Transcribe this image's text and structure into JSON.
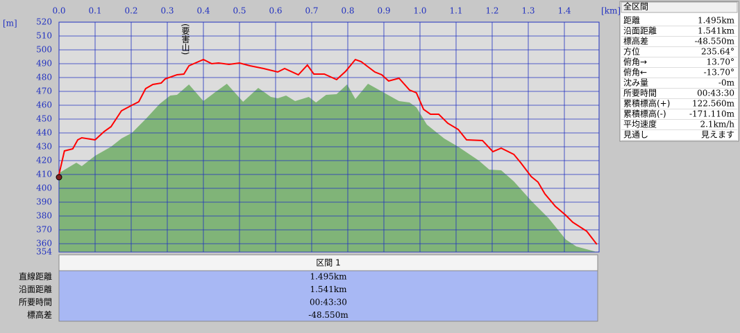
{
  "chart_data": {
    "type": "line",
    "xlim": [
      0,
      1.5
    ],
    "ylim": [
      354,
      520
    ],
    "xticks": [
      {
        "value": 0,
        "label": "0.0"
      },
      0.1,
      0.2,
      0.3,
      0.4,
      0.5,
      0.6,
      0.7,
      0.8,
      0.9,
      {
        "value": 1,
        "label": "1.0"
      },
      1.1,
      1.2,
      1.3,
      1.4
    ],
    "yticks": [
      354,
      360,
      370,
      380,
      390,
      400,
      410,
      420,
      430,
      440,
      450,
      460,
      470,
      480,
      490,
      500,
      510,
      520
    ],
    "x_unit": "[km]",
    "y_unit": "[m]",
    "grid": true,
    "annotations": [
      {
        "text": "(要害山)",
        "x": 0.35
      }
    ],
    "series": [
      {
        "area": true,
        "color": "#80b478",
        "x": [
          0,
          0.048,
          0.063,
          0.1,
          0.144,
          0.173,
          0.202,
          0.24,
          0.279,
          0.308,
          0.327,
          0.36,
          0.4,
          0.433,
          0.465,
          0.51,
          0.552,
          0.587,
          0.606,
          0.629,
          0.654,
          0.692,
          0.712,
          0.74,
          0.769,
          0.798,
          0.821,
          0.856,
          0.904,
          0.942,
          0.971,
          0.99,
          1.019,
          1.067,
          1.106,
          1.163,
          1.192,
          1.225,
          1.26,
          1.308,
          1.356,
          1.404,
          1.433,
          1.49
        ],
        "values": [
          411,
          418.5,
          416,
          423.5,
          430,
          436,
          440,
          450,
          461,
          467,
          467.5,
          475,
          463,
          469.5,
          475.5,
          462.5,
          472.5,
          466,
          465,
          467,
          463,
          466,
          462,
          467.5,
          468,
          475,
          464.5,
          475.5,
          468.5,
          463,
          462,
          458.5,
          446,
          436,
          430,
          420,
          413.5,
          413,
          405,
          391,
          378.5,
          363,
          358,
          354
        ]
      },
      {
        "area": false,
        "color": "#ff0000",
        "x": [
          0,
          0.015,
          0.038,
          0.052,
          0.063,
          0.1,
          0.125,
          0.144,
          0.173,
          0.202,
          0.221,
          0.24,
          0.26,
          0.283,
          0.294,
          0.327,
          0.346,
          0.36,
          0.4,
          0.423,
          0.442,
          0.471,
          0.5,
          0.529,
          0.567,
          0.606,
          0.625,
          0.663,
          0.688,
          0.706,
          0.735,
          0.769,
          0.794,
          0.821,
          0.837,
          0.875,
          0.894,
          0.913,
          0.942,
          0.971,
          0.99,
          1.01,
          1.029,
          1.052,
          1.077,
          1.106,
          1.129,
          1.173,
          1.202,
          1.225,
          1.26,
          1.279,
          1.308,
          1.327,
          1.346,
          1.375,
          1.404,
          1.423,
          1.462,
          1.49
        ],
        "values": [
          410,
          427,
          428.5,
          435,
          436.5,
          435,
          441,
          444.5,
          456,
          460,
          462.5,
          472,
          475,
          476,
          479,
          482,
          482.5,
          488.5,
          493,
          490,
          490.5,
          489.5,
          490.5,
          488.5,
          486.5,
          484,
          486.5,
          482,
          489,
          482.5,
          482.5,
          478.5,
          484.5,
          493,
          491.5,
          484,
          482,
          477.5,
          479.5,
          471,
          469,
          457,
          453.5,
          453.5,
          447,
          442.5,
          435,
          434.5,
          426.5,
          429,
          424.5,
          418.5,
          408.5,
          404.5,
          396,
          387,
          380.5,
          375.5,
          369,
          359.5
        ]
      }
    ]
  },
  "summary": {
    "title": "全区間",
    "rows": [
      [
        "距離",
        "1.495km"
      ],
      [
        "沿面距離",
        "1.541km"
      ],
      [
        "標高差",
        "-48.550m"
      ],
      [
        "方位",
        "235.64°"
      ],
      [
        "俯角→",
        "13.70°"
      ],
      [
        "俯角←",
        "-13.70°"
      ],
      [
        "沈み量",
        "-0m"
      ],
      [
        "所要時間",
        "00:43:30"
      ],
      [
        "累積標高(+)",
        "122.560m"
      ],
      [
        "累積標高(-)",
        "-171.110m"
      ],
      [
        "平均速度",
        "2.1km/h"
      ],
      [
        "見通し",
        "見えます"
      ]
    ]
  },
  "section": {
    "title": "区間 1",
    "rows": [
      [
        "直線距離",
        "1.495km"
      ],
      [
        "沿面距離",
        "1.541km"
      ],
      [
        "所要時間",
        "00:43:30"
      ],
      [
        "標高差",
        "-48.550m"
      ]
    ]
  }
}
